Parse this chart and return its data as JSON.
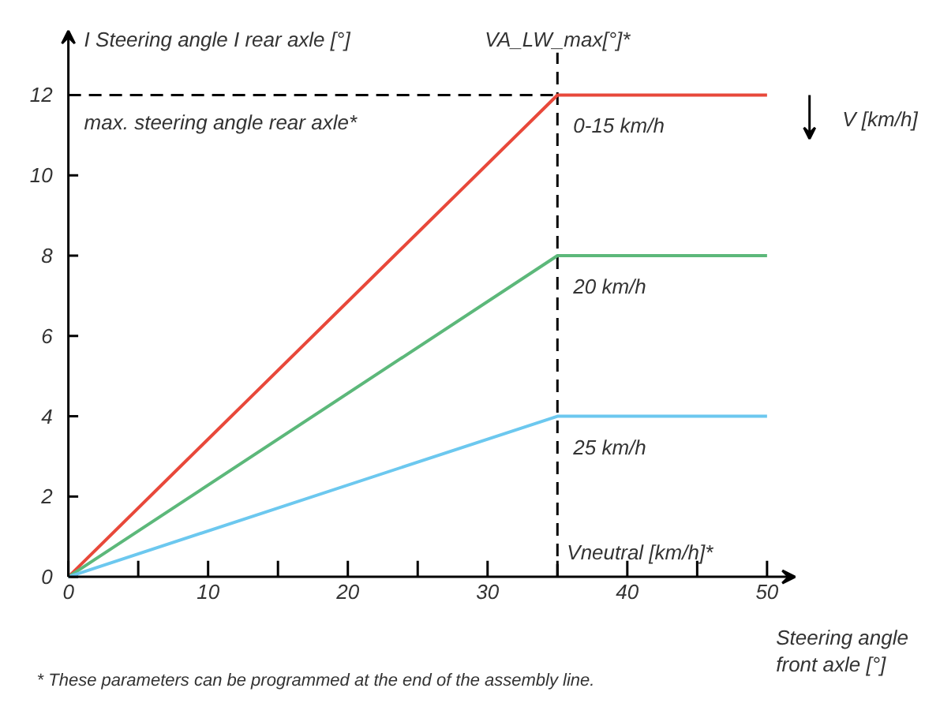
{
  "chart_data": {
    "type": "line",
    "xlabel": "Steering angle\nfront axle [°]",
    "ylabel": "I Steering angle I  rear axle [°]",
    "series": [
      {
        "name": "0-15 km/h",
        "color": "#e8483a",
        "x": [
          0,
          35,
          50
        ],
        "values": [
          0,
          12,
          12
        ]
      },
      {
        "name": "20 km/h",
        "color": "#5cb87a",
        "x": [
          0,
          35,
          50
        ],
        "values": [
          0,
          8,
          8
        ]
      },
      {
        "name": "25 km/h",
        "color": "#6cc8ef",
        "x": [
          0,
          35,
          50
        ],
        "values": [
          0,
          4,
          4
        ]
      }
    ],
    "xlim": [
      0,
      52
    ],
    "ylim": [
      0,
      13.6
    ],
    "xticks": [
      0,
      {
        "value": 5,
        "label": null
      },
      10,
      {
        "value": 15,
        "label": null
      },
      20,
      {
        "value": 25,
        "label": null
      },
      30,
      {
        "value": 35,
        "label": null
      },
      40,
      {
        "value": 45,
        "label": null
      },
      50
    ],
    "yticks": [
      0,
      2,
      4,
      6,
      8,
      10,
      12
    ],
    "ref_lines": [
      {
        "axis": "x",
        "value": 35,
        "label": "VA_LW_max[°]*",
        "color": "#000000",
        "line_style": "dashed"
      },
      {
        "axis": "y",
        "value": 12,
        "label": "max. steering angle rear axle*",
        "color": "#000000",
        "line_style": "dashed"
      }
    ],
    "annotations": [
      "V [km/h]",
      "Vneutral [km/h]*",
      "* These parameters can be programmed at the end of the assembly line."
    ],
    "grid": false,
    "marker": "none",
    "line_style": "solid"
  }
}
